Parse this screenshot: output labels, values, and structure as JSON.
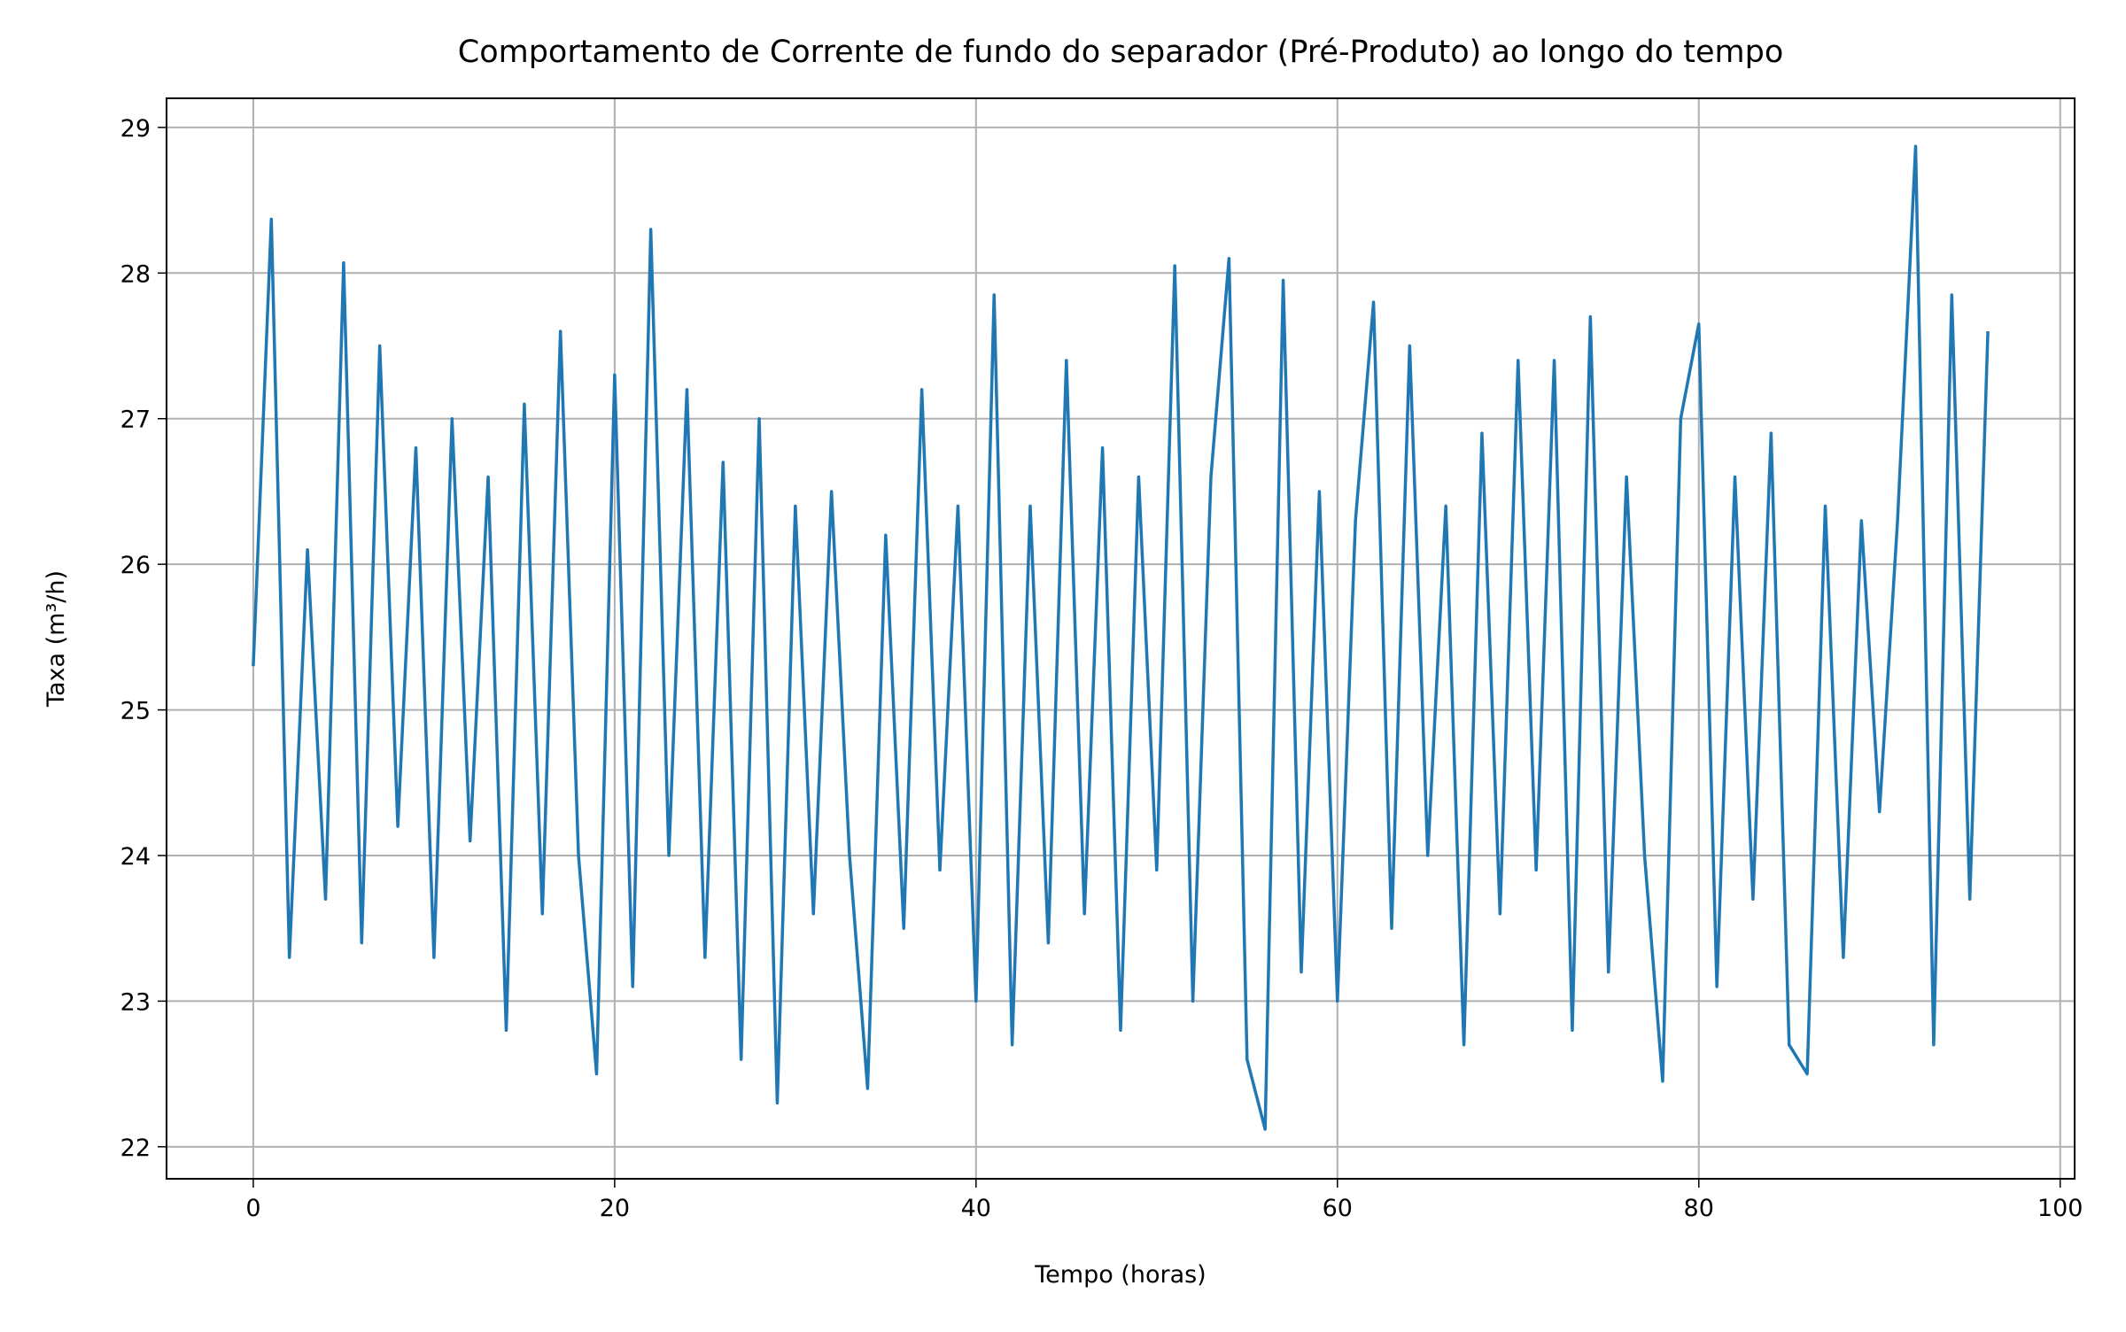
{
  "chart_data": {
    "type": "line",
    "title": "Comportamento de Corrente de fundo do separador (Pré-Produto) ao longo do tempo",
    "xlabel": "Tempo (horas)",
    "ylabel": "Taxa (m³/h)",
    "x": [
      0,
      1,
      2,
      3,
      4,
      5,
      6,
      7,
      8,
      9,
      10,
      11,
      12,
      13,
      14,
      15,
      16,
      17,
      18,
      19,
      20,
      21,
      22,
      23,
      24,
      25,
      26,
      27,
      28,
      29,
      30,
      31,
      32,
      33,
      34,
      35,
      36,
      37,
      38,
      39,
      40,
      41,
      42,
      43,
      44,
      45,
      46,
      47,
      48,
      49,
      50,
      51,
      52,
      53,
      54,
      55,
      56,
      57,
      58,
      59,
      60,
      61,
      62,
      63,
      64,
      65,
      66,
      67,
      68,
      69,
      70,
      71,
      72,
      73,
      74,
      75,
      76,
      77,
      78,
      79,
      80,
      81,
      82,
      83,
      84,
      85,
      86,
      87,
      88,
      89,
      90,
      91,
      92,
      93,
      94,
      95,
      96
    ],
    "series": [
      {
        "color": "#1f77b4",
        "values": [
          25.3,
          28.37,
          23.3,
          26.1,
          23.7,
          28.07,
          23.4,
          27.5,
          24.2,
          26.8,
          23.3,
          27.0,
          24.1,
          26.6,
          22.8,
          27.1,
          23.6,
          27.6,
          24.0,
          22.5,
          27.3,
          23.1,
          28.3,
          24.0,
          27.2,
          23.3,
          26.7,
          22.6,
          27.0,
          22.3,
          26.4,
          23.6,
          26.5,
          24.0,
          22.4,
          26.2,
          23.5,
          27.2,
          23.9,
          26.4,
          23.0,
          27.85,
          22.7,
          26.4,
          23.4,
          27.4,
          23.6,
          26.8,
          22.8,
          26.6,
          23.9,
          28.05,
          23.0,
          26.6,
          28.1,
          22.6,
          22.12,
          27.95,
          23.2,
          26.5,
          23.0,
          26.3,
          27.8,
          23.5,
          27.5,
          24.0,
          26.4,
          22.7,
          26.9,
          23.6,
          27.4,
          23.9,
          27.4,
          22.8,
          27.7,
          23.2,
          26.6,
          24.0,
          22.45,
          27.0,
          27.65,
          23.1,
          26.6,
          23.7,
          26.9,
          22.7,
          22.5,
          26.4,
          23.3,
          26.3,
          24.3,
          26.3,
          28.87,
          22.7,
          27.85,
          23.7,
          27.6
        ]
      }
    ],
    "xlim": [
      -4.8,
      100.8
    ],
    "ylim": [
      21.78,
      29.2
    ],
    "xticks": [
      0,
      20,
      40,
      60,
      80,
      100
    ],
    "yticks": [
      22,
      23,
      24,
      25,
      26,
      27,
      28,
      29
    ],
    "grid": true
  }
}
